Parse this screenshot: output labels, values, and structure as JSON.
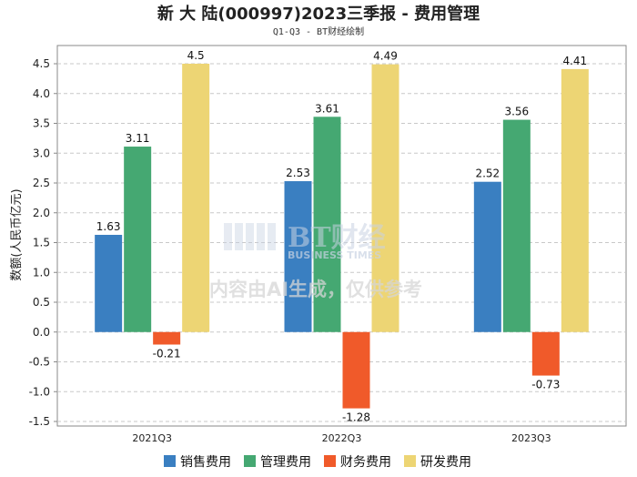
{
  "title": "新 大 陆(000997)2023三季报 - 费用管理",
  "subtitle": "Q1-Q3 - BT财经绘制",
  "watermark": {
    "logo_text": "BT财经",
    "logo_sub": "BUSINESS TIMES",
    "notice": "内容由AI生成，仅供参考"
  },
  "colors": {
    "销售费用": "#3a7fc1",
    "管理费用": "#45a872",
    "财务费用": "#f05a2a",
    "研发费用": "#edd574",
    "grid": "#c8c8c8",
    "axis": "#888888"
  },
  "chart_data": {
    "type": "bar",
    "title": "新 大 陆(000997)2023三季报 - 费用管理",
    "subtitle": "Q1-Q3 - BT财经绘制",
    "xlabel": "",
    "ylabel": "数额(人民币亿元)",
    "categories": [
      "2021Q3",
      "2022Q3",
      "2023Q3"
    ],
    "series": [
      {
        "name": "销售费用",
        "values": [
          1.63,
          2.53,
          2.52
        ]
      },
      {
        "name": "管理费用",
        "values": [
          3.11,
          3.61,
          3.56
        ]
      },
      {
        "name": "财务费用",
        "values": [
          -0.21,
          -1.28,
          -0.73
        ]
      },
      {
        "name": "研发费用",
        "values": [
          4.5,
          4.49,
          4.41
        ]
      }
    ],
    "ylim": [
      -1.5,
      4.5
    ],
    "yticks": [
      "4.5",
      "4.0",
      "3.5",
      "3.0",
      "2.5",
      "2.0",
      "1.5",
      "1.0",
      "0.5",
      "0.0",
      "-0.5",
      "-1.0",
      "-1.5"
    ],
    "grid": true,
    "legend": "bottom"
  }
}
